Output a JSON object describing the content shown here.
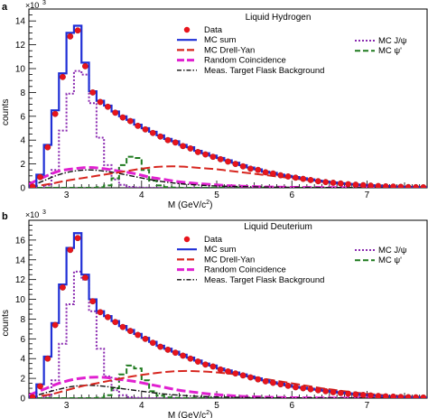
{
  "chart_data": [
    {
      "type": "step",
      "panel_label": "a",
      "title": "Liquid Hydrogen",
      "multiplier_label": "×10",
      "multiplier_exp": "3",
      "xlabel": "M (GeV/c",
      "xlabel_sup": "2",
      "xlabel_close": ")",
      "ylabel": "counts",
      "xlim": [
        2.5,
        7.8
      ],
      "ylim": [
        0,
        15
      ],
      "x_major_ticks": [
        3,
        4,
        5,
        6,
        7
      ],
      "y_major_ticks": [
        0,
        2,
        4,
        6,
        8,
        10,
        12,
        14
      ],
      "bin_edges": [
        2.5,
        2.6,
        2.7,
        2.8,
        2.9,
        3.0,
        3.1,
        3.2,
        3.3,
        3.4,
        3.5,
        3.6,
        3.7,
        3.8,
        3.9,
        4.0,
        4.1,
        4.2,
        4.3,
        4.4,
        4.5,
        4.6,
        4.7,
        4.8,
        4.9,
        5.0,
        5.1,
        5.2,
        5.3,
        5.4,
        5.5,
        5.6,
        5.7,
        5.8,
        5.9,
        6.0,
        6.1,
        6.2,
        6.3,
        6.4,
        6.5,
        6.6,
        6.7,
        6.8,
        6.9,
        7.0,
        7.1,
        7.2,
        7.3,
        7.4,
        7.5,
        7.6,
        7.7,
        7.8
      ],
      "series": [
        {
          "name": "Data",
          "kind": "points",
          "color": "#e8141c",
          "values": [
            0.1,
            0.9,
            3.4,
            6.2,
            9.3,
            12.7,
            13.2,
            10.2,
            8.0,
            7.2,
            6.8,
            6.3,
            5.9,
            5.6,
            5.2,
            4.9,
            4.6,
            4.3,
            4.0,
            3.8,
            3.5,
            3.3,
            3.0,
            2.8,
            2.6,
            2.4,
            2.2,
            2.0,
            1.8,
            1.6,
            1.5,
            1.3,
            1.2,
            1.05,
            0.95,
            0.85,
            0.75,
            0.65,
            0.55,
            0.48,
            0.42,
            0.36,
            0.3,
            0.26,
            0.22,
            0.18,
            0.15,
            0.12,
            0.1,
            0.08,
            0.06,
            0.05,
            0.04
          ]
        },
        {
          "name": "MC sum",
          "kind": "step",
          "color": "#1f2fd6",
          "values": [
            0.15,
            1.1,
            3.6,
            6.5,
            9.6,
            13.0,
            13.6,
            10.5,
            8.1,
            7.3,
            6.9,
            6.4,
            6.0,
            5.7,
            5.3,
            5.0,
            4.7,
            4.4,
            4.1,
            3.9,
            3.6,
            3.4,
            3.1,
            2.9,
            2.7,
            2.5,
            2.3,
            2.1,
            1.9,
            1.7,
            1.55,
            1.35,
            1.25,
            1.1,
            1.0,
            0.9,
            0.8,
            0.7,
            0.6,
            0.52,
            0.45,
            0.38,
            0.32,
            0.28,
            0.24,
            0.2,
            0.17,
            0.14,
            0.11,
            0.09,
            0.07,
            0.06,
            0.05
          ]
        },
        {
          "name": "MC Drell-Yan",
          "kind": "smooth-dashed",
          "color": "#d7261f",
          "x": [
            2.5,
            2.8,
            3.0,
            3.2,
            3.4,
            3.6,
            3.8,
            4.0,
            4.2,
            4.4,
            4.6,
            4.8,
            5.0,
            5.2,
            5.4,
            5.6,
            5.8,
            6.0,
            6.2,
            6.4,
            6.6,
            6.8,
            7.0,
            7.2,
            7.4,
            7.6,
            7.8
          ],
          "values": [
            0.05,
            0.35,
            0.6,
            0.8,
            1.0,
            1.2,
            1.4,
            1.6,
            1.75,
            1.8,
            1.75,
            1.65,
            1.55,
            1.4,
            1.25,
            1.1,
            0.95,
            0.8,
            0.65,
            0.5,
            0.4,
            0.3,
            0.2,
            0.15,
            0.1,
            0.06,
            0.03
          ]
        },
        {
          "name": "Random Coincidence",
          "kind": "smooth-dashed",
          "color": "#e020d0",
          "x": [
            2.5,
            2.7,
            2.9,
            3.1,
            3.3,
            3.5,
            3.7,
            3.9,
            4.1,
            4.3,
            4.5,
            4.7,
            4.9,
            5.1,
            5.3,
            5.5,
            5.7,
            6.0,
            6.5,
            7.0,
            7.8
          ],
          "values": [
            0.3,
            0.9,
            1.4,
            1.6,
            1.7,
            1.6,
            1.4,
            1.2,
            0.9,
            0.7,
            0.5,
            0.38,
            0.28,
            0.2,
            0.14,
            0.1,
            0.07,
            0.04,
            0.02,
            0.01,
            0.0
          ]
        },
        {
          "name": "Meas. Target Flask Background",
          "kind": "smooth-dashdot",
          "color": "#111111",
          "x": [
            2.5,
            2.7,
            2.9,
            3.1,
            3.3,
            3.5,
            3.7,
            3.9,
            4.1,
            4.3,
            4.5,
            4.7,
            5.0,
            5.5,
            6.0,
            7.0,
            7.8
          ],
          "values": [
            0.05,
            0.6,
            1.1,
            1.4,
            1.5,
            1.4,
            1.2,
            0.95,
            0.7,
            0.5,
            0.35,
            0.25,
            0.15,
            0.08,
            0.04,
            0.01,
            0.0
          ]
        },
        {
          "name": "MC J/ψ",
          "kind": "step-dotted",
          "color": "#8a2ab0",
          "values": [
            0,
            0,
            0.2,
            1.5,
            4.8,
            7.9,
            9.8,
            9.5,
            7.1,
            4.2,
            1.9,
            0.7,
            0.25,
            0.08,
            0.03,
            0.01,
            0,
            0,
            0,
            0,
            0,
            0,
            0,
            0,
            0,
            0,
            0,
            0,
            0,
            0,
            0,
            0,
            0,
            0,
            0,
            0,
            0,
            0,
            0,
            0,
            0,
            0,
            0,
            0,
            0,
            0,
            0,
            0,
            0,
            0,
            0,
            0,
            0
          ]
        },
        {
          "name": "MC ψ'",
          "kind": "step-dashed",
          "color": "#1f7a1f",
          "values": [
            0,
            0,
            0,
            0,
            0,
            0,
            0,
            0,
            0,
            0.05,
            0.2,
            0.8,
            1.9,
            2.6,
            2.5,
            1.5,
            0.6,
            0.2,
            0.06,
            0.02,
            0,
            0,
            0,
            0,
            0,
            0,
            0,
            0,
            0,
            0,
            0,
            0,
            0,
            0,
            0,
            0,
            0,
            0,
            0,
            0,
            0,
            0,
            0,
            0,
            0,
            0,
            0,
            0,
            0,
            0,
            0,
            0,
            0
          ]
        }
      ],
      "legend_left": [
        "Data",
        "MC sum",
        "MC Drell-Yan",
        "Random Coincidence",
        "Meas. Target Flask Background"
      ],
      "legend_right": [
        "MC J/ψ",
        "MC ψ'"
      ]
    },
    {
      "type": "step",
      "panel_label": "b",
      "title": "Liquid Deuterium",
      "multiplier_label": "×10",
      "multiplier_exp": "3",
      "xlabel": "M (GeV/c",
      "xlabel_sup": "2",
      "xlabel_close": ")",
      "ylabel": "counts",
      "xlim": [
        2.5,
        7.8
      ],
      "ylim": [
        0,
        18
      ],
      "x_major_ticks": [
        3,
        4,
        5,
        6,
        7
      ],
      "y_major_ticks": [
        0,
        2,
        4,
        6,
        8,
        10,
        12,
        14,
        16
      ],
      "bin_edges": [
        2.5,
        2.6,
        2.7,
        2.8,
        2.9,
        3.0,
        3.1,
        3.2,
        3.3,
        3.4,
        3.5,
        3.6,
        3.7,
        3.8,
        3.9,
        4.0,
        4.1,
        4.2,
        4.3,
        4.4,
        4.5,
        4.6,
        4.7,
        4.8,
        4.9,
        5.0,
        5.1,
        5.2,
        5.3,
        5.4,
        5.5,
        5.6,
        5.7,
        5.8,
        5.9,
        6.0,
        6.1,
        6.2,
        6.3,
        6.4,
        6.5,
        6.6,
        6.7,
        6.8,
        6.9,
        7.0,
        7.1,
        7.2,
        7.3,
        7.4,
        7.5,
        7.6,
        7.7,
        7.8
      ],
      "series": [
        {
          "name": "Data",
          "kind": "points",
          "color": "#e8141c",
          "values": [
            0.1,
            1.2,
            4.0,
            7.4,
            11.2,
            15.0,
            16.2,
            12.2,
            9.8,
            8.7,
            8.2,
            7.7,
            7.2,
            6.8,
            6.4,
            6.0,
            5.6,
            5.2,
            4.9,
            4.6,
            4.3,
            4.0,
            3.7,
            3.4,
            3.2,
            2.9,
            2.7,
            2.5,
            2.3,
            2.1,
            1.9,
            1.7,
            1.55,
            1.4,
            1.25,
            1.1,
            1.0,
            0.9,
            0.8,
            0.7,
            0.6,
            0.52,
            0.45,
            0.38,
            0.32,
            0.27,
            0.22,
            0.18,
            0.15,
            0.12,
            0.1,
            0.08,
            0.06
          ]
        },
        {
          "name": "MC sum",
          "kind": "step",
          "color": "#1f2fd6",
          "values": [
            0.15,
            1.4,
            4.2,
            7.6,
            11.5,
            15.2,
            16.7,
            12.5,
            10.0,
            8.8,
            8.3,
            7.8,
            7.3,
            6.9,
            6.5,
            6.1,
            5.7,
            5.3,
            5.0,
            4.7,
            4.4,
            4.1,
            3.8,
            3.5,
            3.3,
            3.0,
            2.8,
            2.6,
            2.4,
            2.2,
            2.0,
            1.8,
            1.6,
            1.45,
            1.3,
            1.15,
            1.05,
            0.95,
            0.85,
            0.75,
            0.65,
            0.55,
            0.48,
            0.4,
            0.34,
            0.29,
            0.24,
            0.2,
            0.16,
            0.13,
            0.11,
            0.09,
            0.07
          ]
        },
        {
          "name": "MC Drell-Yan",
          "kind": "smooth-dashed",
          "color": "#d7261f",
          "x": [
            2.5,
            2.8,
            3.0,
            3.2,
            3.4,
            3.6,
            3.8,
            4.0,
            4.2,
            4.4,
            4.6,
            4.8,
            5.0,
            5.2,
            5.4,
            5.6,
            5.8,
            6.0,
            6.2,
            6.4,
            6.6,
            6.8,
            7.0,
            7.2,
            7.4,
            7.6,
            7.8
          ],
          "values": [
            0.05,
            0.4,
            0.8,
            1.2,
            1.5,
            1.8,
            2.1,
            2.35,
            2.55,
            2.7,
            2.75,
            2.7,
            2.6,
            2.45,
            2.25,
            2.0,
            1.75,
            1.5,
            1.25,
            1.0,
            0.8,
            0.6,
            0.45,
            0.32,
            0.22,
            0.14,
            0.08
          ]
        },
        {
          "name": "Random Coincidence",
          "kind": "smooth-dashed",
          "color": "#e020d0",
          "x": [
            2.5,
            2.7,
            2.9,
            3.1,
            3.3,
            3.5,
            3.7,
            3.9,
            4.1,
            4.3,
            4.5,
            4.7,
            4.9,
            5.1,
            5.3,
            5.5,
            5.7,
            6.0,
            6.5,
            7.0,
            7.8
          ],
          "values": [
            0.3,
            0.9,
            1.5,
            1.9,
            2.1,
            2.1,
            1.9,
            1.7,
            1.4,
            1.1,
            0.8,
            0.6,
            0.42,
            0.3,
            0.2,
            0.14,
            0.09,
            0.05,
            0.02,
            0.01,
            0.0
          ]
        },
        {
          "name": "Meas. Target Flask Background",
          "kind": "smooth-dashdot",
          "color": "#111111",
          "x": [
            2.5,
            2.7,
            2.9,
            3.1,
            3.3,
            3.5,
            3.7,
            3.9,
            4.1,
            4.3,
            4.5,
            4.7,
            5.0,
            5.5,
            6.0,
            7.0,
            7.8
          ],
          "values": [
            0.05,
            0.5,
            0.9,
            1.2,
            1.3,
            1.2,
            1.0,
            0.8,
            0.6,
            0.42,
            0.3,
            0.2,
            0.12,
            0.06,
            0.03,
            0.01,
            0.0
          ]
        },
        {
          "name": "MC J/ψ",
          "kind": "step-dotted",
          "color": "#8a2ab0",
          "values": [
            0,
            0,
            0.2,
            1.8,
            5.5,
            9.5,
            12.8,
            12.0,
            8.8,
            5.0,
            2.2,
            0.8,
            0.3,
            0.1,
            0.03,
            0.01,
            0,
            0,
            0,
            0,
            0,
            0,
            0,
            0,
            0,
            0,
            0,
            0,
            0,
            0,
            0,
            0,
            0,
            0,
            0,
            0,
            0,
            0,
            0,
            0,
            0,
            0,
            0,
            0,
            0,
            0,
            0,
            0,
            0,
            0,
            0,
            0,
            0
          ]
        },
        {
          "name": "MC ψ'",
          "kind": "step-dashed",
          "color": "#1f7a1f",
          "values": [
            0,
            0,
            0,
            0,
            0,
            0,
            0,
            0,
            0,
            0.05,
            0.3,
            1.0,
            2.4,
            3.3,
            3.0,
            1.8,
            0.7,
            0.25,
            0.08,
            0.02,
            0,
            0,
            0,
            0,
            0,
            0,
            0,
            0,
            0,
            0,
            0,
            0,
            0,
            0,
            0,
            0,
            0,
            0,
            0,
            0,
            0,
            0,
            0,
            0,
            0,
            0,
            0,
            0,
            0,
            0,
            0,
            0,
            0
          ]
        }
      ],
      "legend_left": [
        "Data",
        "MC sum",
        "MC Drell-Yan",
        "Random Coincidence",
        "Meas. Target Flask Background"
      ],
      "legend_right": [
        "MC J/ψ",
        "MC ψ'"
      ]
    }
  ]
}
